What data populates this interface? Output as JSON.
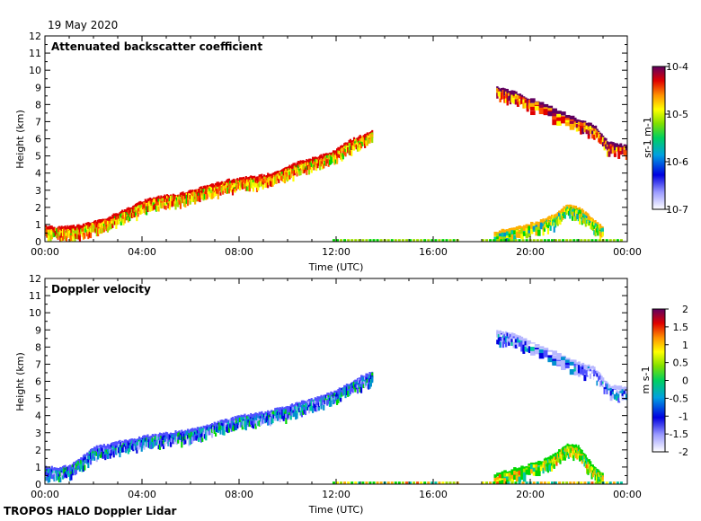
{
  "header": {
    "date": "19 May 2020"
  },
  "footer": {
    "instrument": "TROPOS HALO Doppler Lidar"
  },
  "colors": {
    "background": "#ffffff",
    "axis": "#000000",
    "colormap": [
      "#ffffff",
      "#b8b8ff",
      "#5050ff",
      "#0000e0",
      "#0090d0",
      "#00c8a0",
      "#00d800",
      "#a0e000",
      "#ffff00",
      "#ffb000",
      "#ff5000",
      "#e00000",
      "#a00040",
      "#600060"
    ]
  },
  "chart_data": [
    {
      "type": "heatmap",
      "title": "Attenuated backscatter coefficient",
      "xlabel": "Time (UTC)",
      "ylabel": "Height (km)",
      "xlim": [
        0,
        24
      ],
      "ylim": [
        0,
        12
      ],
      "x_ticks": [
        "00:00",
        "04:00",
        "08:00",
        "12:00",
        "16:00",
        "20:00",
        "00:00"
      ],
      "y_ticks": [
        "0",
        "1",
        "2",
        "3",
        "4",
        "5",
        "6",
        "7",
        "8",
        "9",
        "10",
        "11",
        "12"
      ],
      "colorbar": {
        "unit_label": "sr-1 m-1",
        "scale": "log",
        "range": [
          1e-07,
          0.0001
        ],
        "tick_labels": [
          "10-4",
          "10-5",
          "10-6",
          "10-7"
        ],
        "tick_values": [
          -4,
          -5,
          -6,
          -7
        ]
      },
      "layers": [
        {
          "name": "boundary layer top",
          "x": [
            0,
            0.5,
            1,
            1.5,
            2,
            2.5,
            3,
            3.5,
            4,
            4.5,
            5,
            5.5,
            6,
            6.5,
            7,
            7.5,
            8,
            8.5,
            9,
            9.5,
            10,
            10.5,
            11,
            11.5,
            12,
            12.5,
            13,
            13.5
          ],
          "y": [
            0.9,
            0.85,
            0.9,
            1.0,
            1.2,
            1.4,
            1.7,
            2.0,
            2.4,
            2.6,
            2.7,
            2.8,
            3.0,
            3.2,
            3.4,
            3.6,
            3.7,
            3.8,
            3.9,
            4.1,
            4.4,
            4.7,
            4.9,
            5.1,
            5.4,
            5.9,
            6.2,
            6.5
          ],
          "log_value": -5.0
        },
        {
          "name": "high cloud",
          "x": [
            18.6,
            19.2,
            20,
            21.8,
            22.6,
            23.2,
            24
          ],
          "y": [
            9.0,
            8.8,
            8.3,
            7.2,
            6.8,
            5.8,
            5.6
          ],
          "log_value": -4.6
        },
        {
          "name": "evening low cloud",
          "x": [
            18.5,
            19.5,
            20.5,
            21.0,
            21.5,
            22.0,
            22.5,
            23.0
          ],
          "y": [
            0.6,
            0.9,
            1.3,
            1.6,
            2.2,
            2.0,
            1.4,
            0.8
          ],
          "log_value": -5.5
        }
      ]
    },
    {
      "type": "heatmap",
      "title": "Doppler velocity",
      "xlabel": "Time (UTC)",
      "ylabel": "Height (km)",
      "xlim": [
        0,
        24
      ],
      "ylim": [
        0,
        12
      ],
      "x_ticks": [
        "00:00",
        "04:00",
        "08:00",
        "12:00",
        "16:00",
        "20:00",
        "00:00"
      ],
      "y_ticks": [
        "0",
        "1",
        "2",
        "3",
        "4",
        "5",
        "6",
        "7",
        "8",
        "9",
        "10",
        "11",
        "12"
      ],
      "colorbar": {
        "unit_label": "m s-1",
        "scale": "linear",
        "range": [
          -2,
          2
        ],
        "tick_labels": [
          "2",
          "1.5",
          "1",
          "0.5",
          "0",
          "-0.5",
          "-1",
          "-1.5",
          "-2"
        ],
        "tick_values": [
          2,
          1.5,
          1,
          0.5,
          0,
          -0.5,
          -1,
          -1.5,
          -2
        ]
      },
      "layers": [
        {
          "name": "boundary layer",
          "x": [
            0,
            0.5,
            1,
            1.5,
            2,
            2.5,
            3,
            3.5,
            4,
            4.5,
            5,
            5.5,
            6,
            6.5,
            7,
            7.5,
            8,
            8.5,
            9,
            9.5,
            10,
            10.5,
            11,
            11.5,
            12,
            12.5,
            13,
            13.5
          ],
          "y": [
            1.0,
            1.0,
            1.1,
            1.6,
            2.2,
            2.3,
            2.5,
            2.6,
            2.8,
            2.9,
            3.0,
            3.1,
            3.2,
            3.4,
            3.6,
            3.8,
            4.0,
            4.1,
            4.2,
            4.4,
            4.6,
            4.8,
            5.0,
            5.2,
            5.5,
            5.9,
            6.3,
            6.6
          ],
          "value": -0.9
        },
        {
          "name": "high cloud",
          "x": [
            18.6,
            19.2,
            20,
            21.8,
            22.6,
            23.2,
            24
          ],
          "y": [
            9.0,
            8.8,
            8.3,
            7.2,
            6.8,
            5.8,
            5.6
          ],
          "value": -1.3
        },
        {
          "name": "evening low cloud",
          "x": [
            18.5,
            19.5,
            20.5,
            21.0,
            21.5,
            22.0,
            22.5,
            23.0
          ],
          "y": [
            0.6,
            1.0,
            1.4,
            1.8,
            2.4,
            2.2,
            1.2,
            0.6
          ],
          "value": 0.2
        }
      ]
    }
  ]
}
